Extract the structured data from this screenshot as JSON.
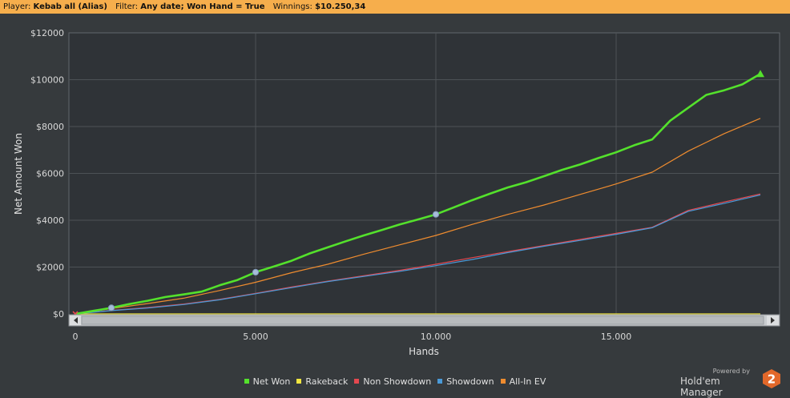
{
  "header": {
    "player_label": "Player:",
    "player_value": "Kebab all (Alias)",
    "filter_label": "Filter:",
    "filter_value": "Any date; Won Hand = True",
    "winnings_label": "Winnings:",
    "winnings_value": "$10.250,34"
  },
  "brand": {
    "powered_by": "Powered by",
    "name": "Hold'em Manager",
    "logo_glyph": "2"
  },
  "colors": {
    "net_won": "#54e12c",
    "rakeback": "#f2e640",
    "non_showdown": "#e5484f",
    "showdown": "#4a9ad8",
    "all_in_ev": "#ef8c2f",
    "marker": "#a7bcd9"
  },
  "chart_data": {
    "type": "line",
    "xlabel": "Hands",
    "ylabel": "Net Amount Won",
    "xlim": [
      0,
      19200
    ],
    "ylim": [
      0,
      12000
    ],
    "x_ticks": [
      0,
      5000,
      10000,
      15000
    ],
    "x_tick_labels": [
      "0",
      "5.000",
      "10.000",
      "15.000"
    ],
    "y_ticks": [
      0,
      2000,
      4000,
      6000,
      8000,
      10000,
      12000
    ],
    "y_tick_labels": [
      "$0",
      "$2000",
      "$4000",
      "$6000",
      "$8000",
      "$10000",
      "$12000"
    ],
    "grid": true,
    "legend_position": "bottom-center",
    "series": [
      {
        "name": "Net Won",
        "color": "#54e12c",
        "x": [
          0,
          500,
          1000,
          1500,
          2000,
          2500,
          3000,
          3500,
          4000,
          4500,
          5000,
          5500,
          6000,
          6500,
          7000,
          7500,
          8000,
          8500,
          9000,
          9500,
          10000,
          10500,
          11000,
          11500,
          12000,
          12500,
          13000,
          13500,
          14000,
          14500,
          15000,
          15500,
          16000,
          16500,
          17000,
          17500,
          18000,
          18500,
          19000
        ],
        "y": [
          0,
          130,
          260,
          420,
          560,
          720,
          830,
          950,
          1220,
          1450,
          1780,
          2020,
          2270,
          2580,
          2840,
          3100,
          3350,
          3580,
          3820,
          4030,
          4250,
          4550,
          4850,
          5130,
          5400,
          5620,
          5880,
          6150,
          6380,
          6650,
          6900,
          7200,
          7450,
          8250,
          8800,
          9350,
          9550,
          9800,
          10250
        ]
      },
      {
        "name": "Rakeback",
        "color": "#f2e640",
        "x": [
          0,
          19000
        ],
        "y": [
          0,
          0
        ]
      },
      {
        "name": "Non Showdown",
        "color": "#e5484f",
        "x": [
          0,
          1000,
          2000,
          3000,
          4000,
          5000,
          6000,
          7000,
          8000,
          9000,
          10000,
          11000,
          12000,
          13000,
          14000,
          15000,
          16000,
          17000,
          18000,
          19000
        ],
        "y": [
          0,
          150,
          270,
          420,
          620,
          880,
          1150,
          1400,
          1630,
          1860,
          2120,
          2400,
          2660,
          2920,
          3180,
          3440,
          3700,
          4420,
          4780,
          5120
        ]
      },
      {
        "name": "Showdown",
        "color": "#4a9ad8",
        "x": [
          0,
          1000,
          2000,
          3000,
          4000,
          5000,
          6000,
          7000,
          8000,
          9000,
          10000,
          11000,
          12000,
          13000,
          14000,
          15000,
          16000,
          17000,
          18000,
          19000
        ],
        "y": [
          0,
          140,
          250,
          400,
          600,
          860,
          1120,
          1380,
          1600,
          1820,
          2060,
          2320,
          2620,
          2890,
          3140,
          3400,
          3680,
          4380,
          4720,
          5080
        ]
      },
      {
        "name": "All-In EV",
        "color": "#ef8c2f",
        "x": [
          0,
          1000,
          2000,
          3000,
          4000,
          5000,
          6000,
          7000,
          8000,
          9000,
          10000,
          11000,
          12000,
          13000,
          14000,
          15000,
          16000,
          17000,
          18000,
          19000
        ],
        "y": [
          0,
          230,
          440,
          670,
          1000,
          1350,
          1760,
          2120,
          2550,
          2950,
          3350,
          3820,
          4250,
          4650,
          5100,
          5550,
          6050,
          6950,
          7700,
          8350
        ]
      }
    ],
    "markers": [
      {
        "x": 1000,
        "y": 260
      },
      {
        "x": 5000,
        "y": 1780
      },
      {
        "x": 10000,
        "y": 4250
      }
    ],
    "end_marker": {
      "x": 19000,
      "y": 10250
    }
  }
}
